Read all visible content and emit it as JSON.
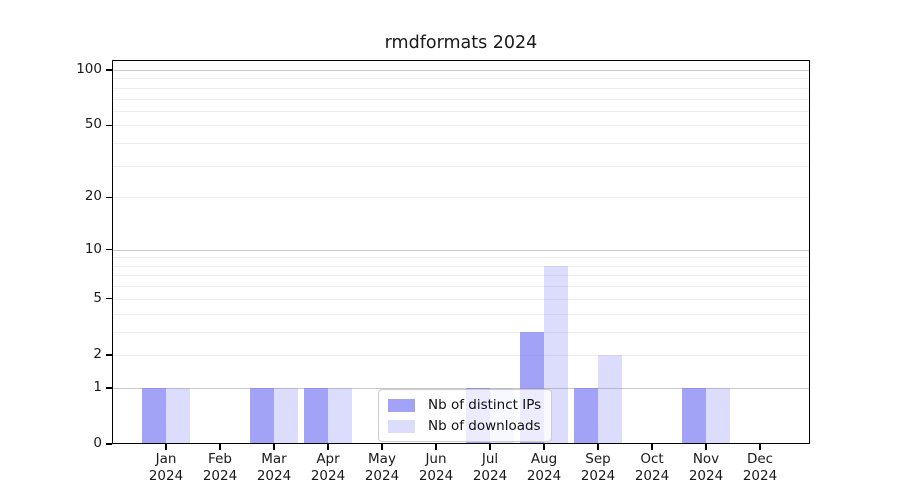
{
  "figure": {
    "background": "#ffffff",
    "text_color": "#1a1a1a"
  },
  "chart_data": {
    "type": "bar",
    "title": "rmdformats 2024",
    "xlabel": "",
    "ylabel": "",
    "categories": [
      "Jan 2024",
      "Feb 2024",
      "Mar 2024",
      "Apr 2024",
      "May 2024",
      "Jun 2024",
      "Jul 2024",
      "Aug 2024",
      "Sep 2024",
      "Oct 2024",
      "Nov 2024",
      "Dec 2024"
    ],
    "series": [
      {
        "name": "Nb of distinct IPs",
        "color": "#7e7ef4",
        "opacity": 0.72,
        "values": [
          1,
          0,
          1,
          1,
          0,
          0,
          1,
          3,
          1,
          0,
          1,
          0
        ]
      },
      {
        "name": "Nb of downloads",
        "color": "#7e7ef4",
        "opacity": 0.27,
        "values": [
          1,
          0,
          1,
          1,
          0,
          0,
          1,
          8,
          2,
          0,
          1,
          0
        ]
      }
    ],
    "y_axis": {
      "scale": "log1p",
      "ticks": [
        0,
        1,
        2,
        5,
        10,
        20,
        50,
        100
      ],
      "ylim": [
        0,
        113
      ]
    },
    "grid": {
      "major_values": [
        1,
        10,
        100
      ],
      "minor_values": [
        2,
        3,
        4,
        5,
        6,
        7,
        8,
        9,
        20,
        30,
        40,
        50,
        60,
        70,
        80,
        90
      ],
      "major_color": "#c8c8c8",
      "minor_color": "#eeeeee"
    },
    "legend": {
      "position": "inside-bottom-center",
      "entries": [
        "Nb of distinct IPs",
        "Nb of downloads"
      ]
    }
  }
}
